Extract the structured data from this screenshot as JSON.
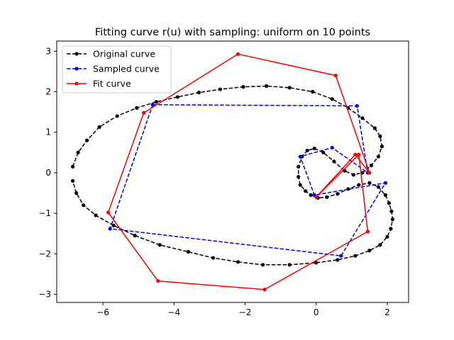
{
  "chart_data": {
    "type": "line",
    "title": "Fitting curve r(u) with sampling: uniform on 10 points",
    "xlabel": "",
    "ylabel": "",
    "xlim": [
      -7.3,
      2.6
    ],
    "ylim": [
      -3.2,
      3.25
    ],
    "xticks": [
      -6,
      -4,
      -2,
      0,
      2
    ],
    "yticks": [
      -3,
      -2,
      -1,
      0,
      1,
      2,
      3
    ],
    "xtick_labels": [
      "−6",
      "−4",
      "−2",
      "0",
      "2"
    ],
    "ytick_labels": [
      "−3",
      "−2",
      "−1",
      "0",
      "1",
      "2",
      "3"
    ],
    "grid": false,
    "legend_position": "top-left",
    "series": [
      {
        "name": "Original curve",
        "color": "#000000",
        "linestyle": "dashed",
        "marker": "circle",
        "x": [
          -6.85,
          -6.7,
          -6.45,
          -6.1,
          -5.6,
          -5.05,
          -4.5,
          -3.9,
          -3.3,
          -2.7,
          -2.05,
          -1.4,
          -0.75,
          -0.1,
          0.45,
          0.9,
          1.3,
          1.65,
          1.8,
          1.85,
          1.75,
          1.55,
          1.3,
          1.05,
          0.8,
          0.5,
          0.2,
          -0.05,
          -0.25,
          -0.4,
          -0.5,
          -0.5,
          -0.45,
          -0.3,
          -0.15,
          0.05,
          0.3,
          0.6,
          0.9,
          1.2,
          1.5,
          1.75,
          1.95,
          2.05,
          2.12,
          2.15,
          2.1,
          2.0,
          1.8,
          1.5,
          1.1,
          0.6,
          0.0,
          -0.75,
          -1.5,
          -2.2,
          -2.9,
          -3.6,
          -4.4,
          -5.1,
          -5.7,
          -6.2,
          -6.55,
          -6.75,
          -6.85
        ],
        "y": [
          0.15,
          0.5,
          0.8,
          1.13,
          1.4,
          1.6,
          1.75,
          1.87,
          1.98,
          2.06,
          2.12,
          2.14,
          2.1,
          2.0,
          1.82,
          1.6,
          1.35,
          1.1,
          0.9,
          0.65,
          0.4,
          0.18,
          0.0,
          -0.05,
          0.05,
          0.28,
          0.5,
          0.6,
          0.55,
          0.4,
          0.15,
          -0.1,
          -0.3,
          -0.45,
          -0.55,
          -0.62,
          -0.6,
          -0.52,
          -0.4,
          -0.3,
          -0.25,
          -0.35,
          -0.55,
          -0.75,
          -0.95,
          -1.15,
          -1.38,
          -1.58,
          -1.78,
          -1.92,
          -2.05,
          -2.15,
          -2.22,
          -2.27,
          -2.27,
          -2.2,
          -2.1,
          -1.95,
          -1.78,
          -1.55,
          -1.3,
          -1.05,
          -0.8,
          -0.5,
          -0.2
        ]
      },
      {
        "name": "Sampled curve",
        "color": "#0000ff",
        "linestyle": "dashed",
        "marker": "circle",
        "x": [
          -4.6,
          1.15,
          1.45,
          0.45,
          -0.45,
          -0.05,
          1.95,
          0.7,
          -5.8,
          -4.6
        ],
        "y": [
          1.68,
          1.65,
          0.0,
          0.62,
          0.4,
          -0.55,
          -0.25,
          -2.05,
          -1.38,
          1.68
        ]
      },
      {
        "name": "Fit curve",
        "color": "#ff0000",
        "linestyle": "solid",
        "marker": "circle",
        "x": [
          -4.85,
          -2.2,
          0.55,
          1.5,
          1.1,
          0.0,
          1.2,
          1.45,
          -1.45,
          -4.45,
          -5.85,
          -4.85
        ],
        "y": [
          1.48,
          2.93,
          2.4,
          0.0,
          0.45,
          -0.6,
          0.45,
          -1.45,
          -2.88,
          -2.67,
          -0.98,
          1.48
        ]
      }
    ]
  }
}
